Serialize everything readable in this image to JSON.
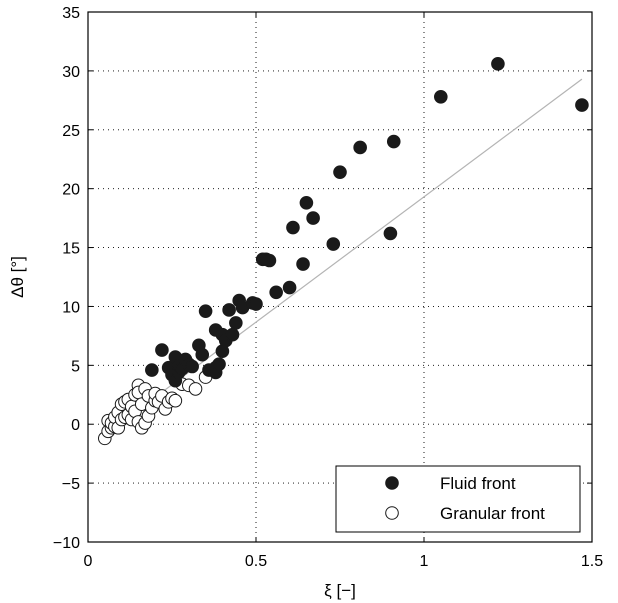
{
  "chart_data": {
    "type": "scatter",
    "title": "",
    "xlabel": "ξ [−]",
    "ylabel": "Δθ [°]",
    "xlim": [
      0,
      1.5
    ],
    "ylim": [
      -10,
      35
    ],
    "xticks": [
      0,
      0.5,
      1,
      1.5
    ],
    "xtick_labels": [
      "0",
      "0.5",
      "1",
      "1.5"
    ],
    "yticks": [
      -10,
      -5,
      0,
      5,
      10,
      15,
      20,
      25,
      30,
      35
    ],
    "ytick_labels": [
      "−10",
      "−5",
      "0",
      "5",
      "10",
      "15",
      "20",
      "25",
      "30",
      "35"
    ],
    "grid": true,
    "legend_position": "bottom-right",
    "fit_line": {
      "color": "#b4b4b4",
      "x": [
        0.05,
        1.47
      ],
      "y": [
        -0.9,
        29.3
      ]
    },
    "series": [
      {
        "name": "Fluid front",
        "marker": "filled-circle",
        "color": "#1a1a1a",
        "x": [
          0.19,
          0.22,
          0.24,
          0.25,
          0.26,
          0.26,
          0.27,
          0.27,
          0.28,
          0.29,
          0.3,
          0.31,
          0.33,
          0.34,
          0.35,
          0.36,
          0.38,
          0.38,
          0.38,
          0.39,
          0.4,
          0.4,
          0.41,
          0.42,
          0.43,
          0.44,
          0.45,
          0.46,
          0.49,
          0.5,
          0.52,
          0.53,
          0.54,
          0.56,
          0.6,
          0.61,
          0.64,
          0.65,
          0.67,
          0.73,
          0.75,
          0.81,
          0.9,
          0.91,
          1.05,
          1.22,
          1.47
        ],
        "y": [
          4.6,
          6.3,
          4.8,
          4.2,
          5.7,
          3.7,
          4.4,
          5.0,
          4.7,
          5.5,
          5.1,
          4.9,
          6.7,
          5.9,
          9.6,
          4.6,
          4.4,
          8.0,
          4.8,
          5.1,
          7.6,
          6.2,
          7.1,
          9.7,
          7.6,
          8.6,
          10.5,
          9.9,
          10.3,
          10.2,
          14.0,
          14.0,
          13.9,
          11.2,
          11.6,
          16.7,
          13.6,
          18.8,
          17.5,
          15.3,
          21.4,
          23.5,
          16.2,
          24.0,
          27.8,
          30.6,
          27.1
        ]
      },
      {
        "name": "Granular front",
        "marker": "open-circle",
        "color": "#1a1a1a",
        "x": [
          0.05,
          0.06,
          0.06,
          0.07,
          0.07,
          0.08,
          0.08,
          0.09,
          0.09,
          0.1,
          0.1,
          0.11,
          0.11,
          0.12,
          0.12,
          0.13,
          0.13,
          0.14,
          0.14,
          0.15,
          0.15,
          0.15,
          0.16,
          0.16,
          0.17,
          0.17,
          0.18,
          0.18,
          0.19,
          0.2,
          0.2,
          0.21,
          0.22,
          0.23,
          0.24,
          0.25,
          0.26,
          0.28,
          0.3,
          0.32,
          0.35
        ],
        "y": [
          -1.2,
          0.3,
          -0.6,
          -0.3,
          0.1,
          -0.2,
          0.6,
          -0.3,
          1.0,
          0.4,
          1.7,
          0.6,
          1.9,
          0.8,
          2.1,
          1.5,
          0.4,
          1.1,
          2.5,
          3.3,
          2.7,
          0.2,
          1.7,
          -0.3,
          3.0,
          0.1,
          2.4,
          0.7,
          1.4,
          2.0,
          2.6,
          1.9,
          2.4,
          1.3,
          1.9,
          2.2,
          2.0,
          3.4,
          3.3,
          3.0,
          4.0
        ]
      }
    ]
  }
}
